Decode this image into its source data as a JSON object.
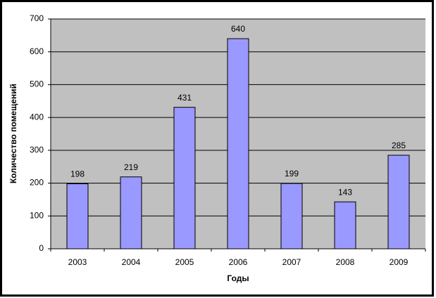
{
  "chart_data": {
    "type": "bar",
    "x_label": "Годы",
    "y_label": "Количество помещений",
    "categories": [
      "2003",
      "2004",
      "2005",
      "2006",
      "2007",
      "2008",
      "2009"
    ],
    "values": [
      198,
      219,
      431,
      640,
      199,
      143,
      285
    ],
    "color": "#9999ff",
    "ylim": [
      0,
      700
    ],
    "yticks": [
      0,
      100,
      200,
      300,
      400,
      500,
      600,
      700
    ],
    "grid": true
  }
}
